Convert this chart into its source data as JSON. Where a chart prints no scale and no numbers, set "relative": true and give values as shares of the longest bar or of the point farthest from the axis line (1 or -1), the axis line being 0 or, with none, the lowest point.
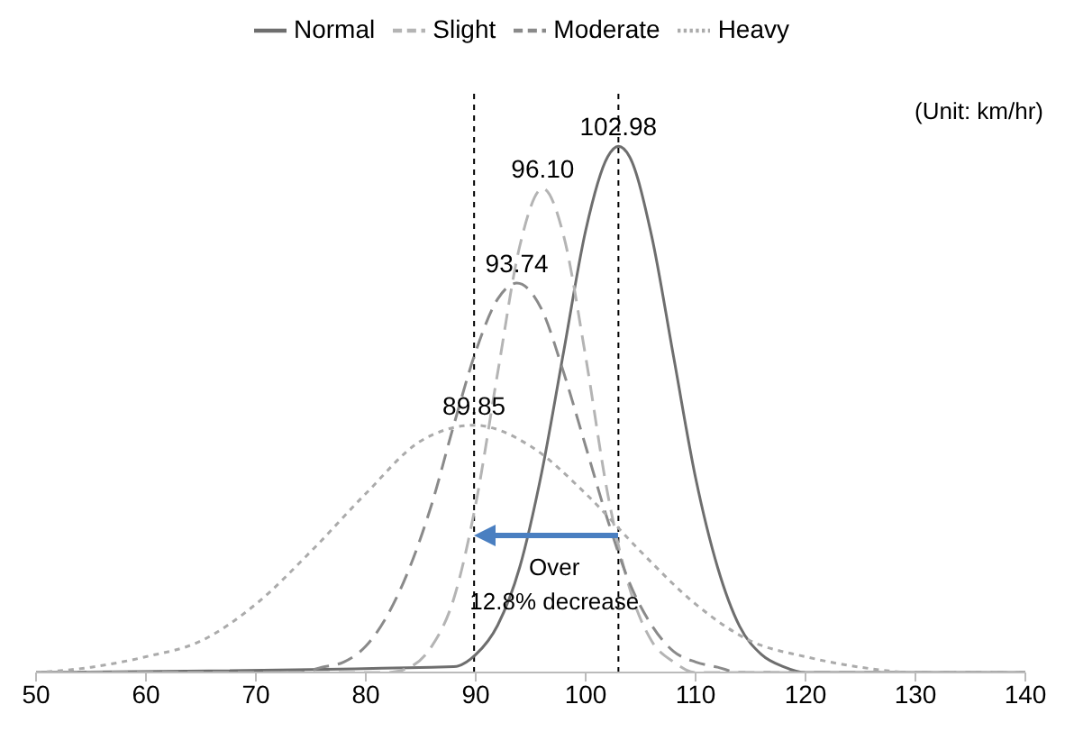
{
  "chart_data": {
    "type": "line",
    "relative": true,
    "xlim": [
      50,
      140
    ],
    "xticks": [
      50,
      60,
      70,
      80,
      90,
      100,
      110,
      120,
      130,
      140
    ],
    "legend": "top",
    "marker": "none",
    "series": [
      {
        "name": "Normal",
        "color": "#6e6e6e",
        "line_style": "solid",
        "x": [
          50,
          88,
          90,
          92,
          94,
          96,
          98,
          100,
          102,
          102.98,
          104,
          106,
          108,
          110,
          112,
          114,
          116,
          118,
          120,
          140
        ],
        "values": [
          0,
          0.011,
          0.034,
          0.09,
          0.2,
          0.38,
          0.61,
          0.84,
          0.98,
          1,
          0.98,
          0.83,
          0.6,
          0.37,
          0.2,
          0.088,
          0.034,
          0.011,
          0,
          0
        ]
      },
      {
        "name": "Slight",
        "color": "#b4b4b4",
        "line_style": "dashed",
        "x": [
          50,
          82,
          84,
          86,
          88,
          90,
          92,
          94,
          96.1,
          98,
          100,
          102,
          104,
          106,
          108,
          110,
          140
        ],
        "values": [
          0,
          0,
          0.01,
          0.05,
          0.14,
          0.32,
          0.57,
          0.81,
          0.92,
          0.83,
          0.6,
          0.34,
          0.16,
          0.06,
          0.02,
          0,
          0
        ]
      },
      {
        "name": "Moderate",
        "color": "#8a8a8a",
        "line_style": "dashed",
        "x": [
          50,
          74,
          76,
          78,
          80,
          82,
          84,
          86,
          88,
          90,
          92,
          93.74,
          96,
          98,
          100,
          102,
          104,
          106,
          108,
          110,
          112,
          114,
          140
        ],
        "values": [
          0,
          0,
          0.01,
          0.02,
          0.05,
          0.11,
          0.2,
          0.32,
          0.47,
          0.61,
          0.71,
          0.74,
          0.69,
          0.57,
          0.43,
          0.29,
          0.17,
          0.09,
          0.04,
          0.02,
          0.01,
          0,
          0
        ]
      },
      {
        "name": "Heavy",
        "color": "#ababab",
        "line_style": "dotted",
        "x": [
          50,
          55,
          60,
          65,
          70,
          75,
          80,
          85,
          89.85,
          95,
          100,
          105,
          110,
          115,
          120,
          125,
          130,
          140
        ],
        "values": [
          0,
          0.01,
          0.03,
          0.06,
          0.13,
          0.23,
          0.34,
          0.44,
          0.47,
          0.43,
          0.34,
          0.23,
          0.13,
          0.06,
          0.03,
          0.01,
          0,
          0
        ]
      }
    ],
    "ref_lines": [
      {
        "axis": "x",
        "value": 89.85,
        "color": "#000000",
        "line_style": "dotted"
      },
      {
        "axis": "x",
        "value": 102.98,
        "color": "#000000",
        "line_style": "dotted"
      }
    ],
    "annotations": [
      {
        "text": "102.98",
        "x": 102.98,
        "y": 1
      },
      {
        "text": "96.10",
        "x": 96.1,
        "y": 0.92
      },
      {
        "text": "93.74",
        "x": 93.74,
        "y": 0.74
      },
      {
        "text": "89.85",
        "x": 89.85,
        "y": 0.47
      },
      "(Unit: km/hr)",
      "Over 12.8% decrease"
    ]
  }
}
